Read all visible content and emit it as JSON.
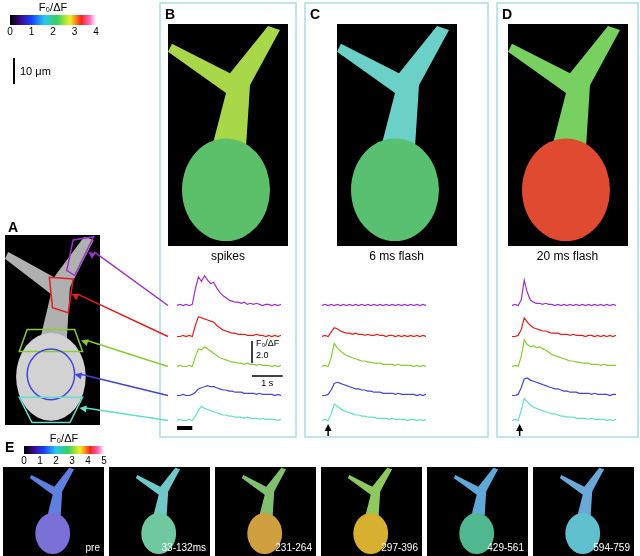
{
  "panel_labels": [
    "A",
    "B",
    "C",
    "D",
    "E"
  ],
  "colorbar": {
    "label": "F₀/ΔF",
    "range": [
      0,
      4
    ],
    "ticks": [
      0,
      1,
      2,
      3,
      4
    ]
  },
  "image_scale_bar": {
    "label": "10 μm"
  },
  "cell_image_colors": [
    [
      "#a8d84a",
      "#5cc06a"
    ],
    [
      "#6ad0c8",
      "#58c070"
    ],
    [
      "#78d060",
      "#e04a30"
    ]
  ],
  "chart_data": [
    {
      "type": "line",
      "title": "spikes",
      "x": [
        0,
        0.1,
        0.2,
        0.3,
        0.4,
        0.5,
        0.6,
        0.7,
        0.8,
        0.9,
        1.0,
        1.1,
        1.2,
        1.3,
        1.4,
        1.5,
        1.6,
        1.7,
        1.8,
        1.9,
        2.0,
        2.1,
        2.2,
        2.3,
        2.4,
        2.5,
        2.6,
        2.7,
        2.8,
        2.9,
        3.0,
        3.1,
        3.2,
        3.3,
        3.4
      ],
      "xlim": [
        0,
        3.4
      ],
      "ylim": [
        -0.5,
        4.5
      ],
      "tick_labels": false,
      "grid": false,
      "series": [
        {
          "color": "#9933cc",
          "values": [
            0,
            0.1,
            0,
            0.1,
            0,
            0.1,
            1.5,
            2.6,
            2.2,
            2.7,
            2.3,
            2.0,
            2.1,
            1.6,
            1.2,
            0.9,
            0.7,
            0.5,
            0.4,
            0.3,
            0.3,
            0.2,
            0.3,
            0.1,
            0.2,
            0.1,
            0.2,
            0.1,
            0,
            0.1,
            0.1,
            0,
            0.1,
            0,
            0.1
          ]
        },
        {
          "color": "#e02020",
          "values": [
            0,
            0,
            0.1,
            0,
            0.1,
            0,
            1.0,
            1.8,
            1.7,
            1.6,
            1.5,
            1.4,
            1.3,
            1.0,
            0.8,
            0.6,
            0.5,
            0.4,
            0.3,
            0.3,
            0.2,
            0.2,
            0.2,
            0.1,
            0.1,
            0.1,
            0.2,
            0.1,
            0.1,
            0,
            0.1,
            0,
            0.1,
            0,
            0.1
          ]
        },
        {
          "color": "#88cc33",
          "values": [
            0,
            0.1,
            0,
            0,
            0.1,
            0,
            0.9,
            1.6,
            1.5,
            1.8,
            1.6,
            1.4,
            1.2,
            1.0,
            0.8,
            0.7,
            0.6,
            0.5,
            0.4,
            0.4,
            0.3,
            0.3,
            0.2,
            0.3,
            0.2,
            0.2,
            0.1,
            0.2,
            0.1,
            0.1,
            0.1,
            0,
            0.1,
            0,
            0.1
          ]
        },
        {
          "color": "#4444dd",
          "values": [
            0,
            0,
            0.1,
            0,
            0,
            0.1,
            0.3,
            0.6,
            0.7,
            0.8,
            0.9,
            0.8,
            0.8,
            0.7,
            0.6,
            0.5,
            0.5,
            0.4,
            0.4,
            0.3,
            0.3,
            0.3,
            0.2,
            0.2,
            0.2,
            0.2,
            0.1,
            0.2,
            0.1,
            0.1,
            0.1,
            0.1,
            0,
            0.1,
            0
          ]
        },
        {
          "color": "#66ddcc",
          "values": [
            0,
            0.1,
            0,
            0,
            0.1,
            0,
            0.4,
            0.9,
            1.3,
            1.1,
            1.0,
            0.9,
            0.8,
            0.7,
            0.6,
            0.5,
            0.5,
            0.4,
            0.4,
            0.3,
            0.3,
            0.3,
            0.2,
            0.3,
            0.2,
            0.2,
            0.2,
            0.1,
            0.2,
            0.1,
            0.1,
            0.1,
            0.1,
            0,
            0.1
          ]
        }
      ],
      "stimulus": {
        "start": 0,
        "end": 0.5
      },
      "scale_bar": {
        "y": {
          "value": 2,
          "label": "2.0",
          "title": "F₀/ΔF"
        },
        "x": {
          "value": 1,
          "label": "1 s"
        }
      }
    },
    {
      "type": "line",
      "title": "6 ms flash",
      "x": [
        0,
        0.1,
        0.2,
        0.3,
        0.4,
        0.5,
        0.6,
        0.7,
        0.8,
        0.9,
        1.0,
        1.1,
        1.2,
        1.3,
        1.4,
        1.5,
        1.6,
        1.7,
        1.8,
        1.9,
        2.0,
        2.1,
        2.2,
        2.3,
        2.4,
        2.5,
        2.6,
        2.7,
        2.8,
        2.9,
        3.0,
        3.1,
        3.2,
        3.3,
        3.4
      ],
      "xlim": [
        0,
        3.4
      ],
      "ylim": [
        -0.5,
        4.5
      ],
      "tick_labels": false,
      "grid": false,
      "series": [
        {
          "color": "#9933cc",
          "values": [
            0,
            0.1,
            0,
            0.1,
            0,
            0.1,
            0,
            0.1,
            0,
            0.1,
            0,
            0.1,
            0,
            0.1,
            0,
            0.1,
            0,
            0.1,
            0,
            0.1,
            0,
            0.1,
            0,
            0.1,
            0,
            0.1,
            0,
            0.1,
            0,
            0.1,
            0,
            0.1,
            0,
            0.1,
            0
          ]
        },
        {
          "color": "#e02020",
          "values": [
            0,
            0.1,
            0,
            0.4,
            0.8,
            0.7,
            0.5,
            0.4,
            0.3,
            0.3,
            0.2,
            0.3,
            0.2,
            0.2,
            0.1,
            0.2,
            0.1,
            0.1,
            0.2,
            0.1,
            0.1,
            0,
            0.1,
            0.1,
            0,
            0.1,
            0,
            0.1,
            0,
            0.1,
            0,
            0.1,
            0,
            0.1,
            0
          ]
        },
        {
          "color": "#88cc33",
          "values": [
            0,
            0.1,
            0,
            0.8,
            2.1,
            1.7,
            1.4,
            1.2,
            1.0,
            0.9,
            0.8,
            0.7,
            0.6,
            0.5,
            0.5,
            0.4,
            0.4,
            0.3,
            0.3,
            0.3,
            0.2,
            0.2,
            0.2,
            0.2,
            0.1,
            0.2,
            0.1,
            0.1,
            0.1,
            0.1,
            0,
            0.1,
            0,
            0.1,
            0
          ]
        },
        {
          "color": "#4444dd",
          "values": [
            0,
            0,
            0.1,
            0.5,
            1.1,
            1.2,
            1.1,
            1.0,
            0.9,
            0.8,
            0.7,
            0.6,
            0.6,
            0.5,
            0.5,
            0.4,
            0.4,
            0.3,
            0.3,
            0.3,
            0.2,
            0.2,
            0.2,
            0.2,
            0.1,
            0.2,
            0.1,
            0.1,
            0.1,
            0.1,
            0.1,
            0,
            0.1,
            0,
            0.1
          ]
        },
        {
          "color": "#66ddcc",
          "values": [
            0,
            0.1,
            0,
            0.6,
            1.5,
            1.3,
            1.1,
            0.9,
            0.8,
            0.7,
            0.6,
            0.5,
            0.5,
            0.4,
            0.4,
            0.3,
            0.3,
            0.3,
            0.2,
            0.2,
            0.2,
            0.2,
            0.1,
            0.2,
            0.1,
            0.1,
            0.1,
            0.1,
            0,
            0.1,
            0.1,
            0,
            0.1,
            0,
            0.1
          ]
        }
      ],
      "stimulus": {
        "time": 0.2
      }
    },
    {
      "type": "line",
      "title": "20 ms flash",
      "x": [
        0,
        0.1,
        0.2,
        0.3,
        0.4,
        0.5,
        0.6,
        0.7,
        0.8,
        0.9,
        1.0,
        1.1,
        1.2,
        1.3,
        1.4,
        1.5,
        1.6,
        1.7,
        1.8,
        1.9,
        2.0,
        2.1,
        2.2,
        2.3,
        2.4,
        2.5,
        2.6,
        2.7,
        2.8,
        2.9,
        3.0,
        3.1,
        3.2,
        3.3,
        3.4
      ],
      "xlim": [
        0,
        3.4
      ],
      "ylim": [
        -0.5,
        4.5
      ],
      "tick_labels": false,
      "grid": false,
      "series": [
        {
          "color": "#9933cc",
          "values": [
            0,
            0.1,
            0,
            0.5,
            2.3,
            1.2,
            0.5,
            0.3,
            0.2,
            0.2,
            0.1,
            0.2,
            0.1,
            0.1,
            0,
            0.1,
            0,
            0.1,
            0,
            0.1,
            0,
            0.1,
            0,
            0.1,
            0,
            0.1,
            0,
            0.1,
            0,
            0.1,
            0,
            0.1,
            0,
            0.1,
            0
          ]
        },
        {
          "color": "#e02020",
          "values": [
            0,
            0,
            0.1,
            0.6,
            1.7,
            1.3,
            1.0,
            0.8,
            0.7,
            0.6,
            0.5,
            0.5,
            0.4,
            0.3,
            0.3,
            0.3,
            0.2,
            0.2,
            0.2,
            0.1,
            0.2,
            0.1,
            0.1,
            0.1,
            0,
            0.1,
            0.1,
            0,
            0.1,
            0,
            0.1,
            0,
            0.1,
            0,
            0.1
          ]
        },
        {
          "color": "#88cc33",
          "values": [
            0,
            0.1,
            0,
            0.9,
            2.4,
            2.0,
            1.8,
            1.9,
            1.7,
            1.8,
            1.6,
            1.5,
            1.3,
            1.1,
            1.0,
            0.9,
            0.8,
            0.7,
            0.6,
            0.5,
            0.5,
            0.4,
            0.4,
            0.3,
            0.3,
            0.3,
            0.2,
            0.2,
            0.2,
            0.1,
            0.2,
            0.1,
            0.1,
            0.1,
            0.1
          ]
        },
        {
          "color": "#4444dd",
          "values": [
            0,
            0,
            0.1,
            0.7,
            1.5,
            1.6,
            1.4,
            1.3,
            1.2,
            1.1,
            1.0,
            0.9,
            0.8,
            0.7,
            0.6,
            0.6,
            0.5,
            0.4,
            0.4,
            0.3,
            0.3,
            0.3,
            0.2,
            0.2,
            0.2,
            0.2,
            0.1,
            0.2,
            0.1,
            0.1,
            0.1,
            0.1,
            0,
            0.1,
            0.1
          ]
        },
        {
          "color": "#66ddcc",
          "values": [
            0,
            0.1,
            0,
            0.9,
            2.0,
            1.7,
            1.4,
            1.2,
            1.1,
            1.0,
            0.9,
            0.8,
            0.7,
            0.6,
            0.6,
            0.5,
            0.4,
            0.4,
            0.3,
            0.3,
            0.3,
            0.2,
            0.2,
            0.2,
            0.2,
            0.1,
            0.2,
            0.1,
            0.1,
            0.1,
            0.1,
            0,
            0.1,
            0,
            0.1
          ]
        }
      ],
      "stimulus": {
        "time": 0.25
      }
    }
  ],
  "panel_E": {
    "colorbar": {
      "label": "F₀/ΔF",
      "range": [
        0,
        5
      ],
      "ticks": [
        0,
        1,
        2,
        3,
        4,
        5
      ]
    },
    "images": [
      {
        "label": "pre",
        "colors": [
          "#6080e0",
          "#7a70d8"
        ]
      },
      {
        "label": "33-132ms",
        "colors": [
          "#70c8c8",
          "#70c8a0"
        ]
      },
      {
        "label": "231-264",
        "colors": [
          "#80c070",
          "#d0a040"
        ]
      },
      {
        "label": "297-396",
        "colors": [
          "#90c860",
          "#d8b030"
        ]
      },
      {
        "label": "429-561",
        "colors": [
          "#60a8d8",
          "#50b890"
        ]
      },
      {
        "label": "594-759",
        "colors": [
          "#6aa8d8",
          "#60c0d0"
        ]
      }
    ]
  }
}
